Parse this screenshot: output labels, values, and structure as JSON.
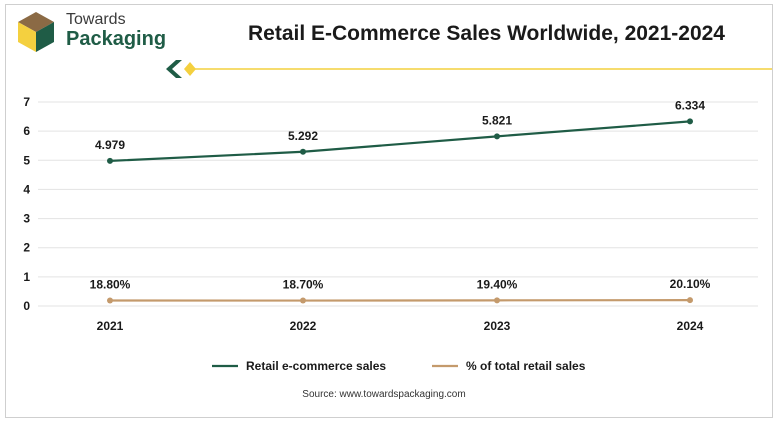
{
  "brand": {
    "line1": "Towards",
    "line2": "Packaging",
    "colors": {
      "green": "#1f5c46",
      "gold": "#f4d03f",
      "brown": "#c49a6c"
    }
  },
  "source_text": "Source: www.towardspackaging.com",
  "chart_data": {
    "type": "line",
    "title": "Retail E-Commerce Sales Worldwide, 2021-2024",
    "xlabel": "",
    "ylabel": "",
    "categories": [
      "2021",
      "2022",
      "2023",
      "2024"
    ],
    "ylim": [
      0,
      7
    ],
    "yticks": [
      0,
      1,
      2,
      3,
      4,
      5,
      6,
      7
    ],
    "grid": true,
    "legend_position": "bottom",
    "series": [
      {
        "name": "Retail e-commerce sales",
        "values": [
          4.979,
          5.292,
          5.821,
          6.334
        ],
        "labels": [
          "4.979",
          "5.292",
          "5.821",
          "6.334"
        ],
        "color": "#1f5c46"
      },
      {
        "name": "% of total retail sales",
        "values": [
          0.188,
          0.187,
          0.194,
          0.201
        ],
        "labels": [
          "18.80%",
          "18.70%",
          "19.40%",
          "20.10%"
        ],
        "color": "#c49a6c"
      }
    ]
  }
}
